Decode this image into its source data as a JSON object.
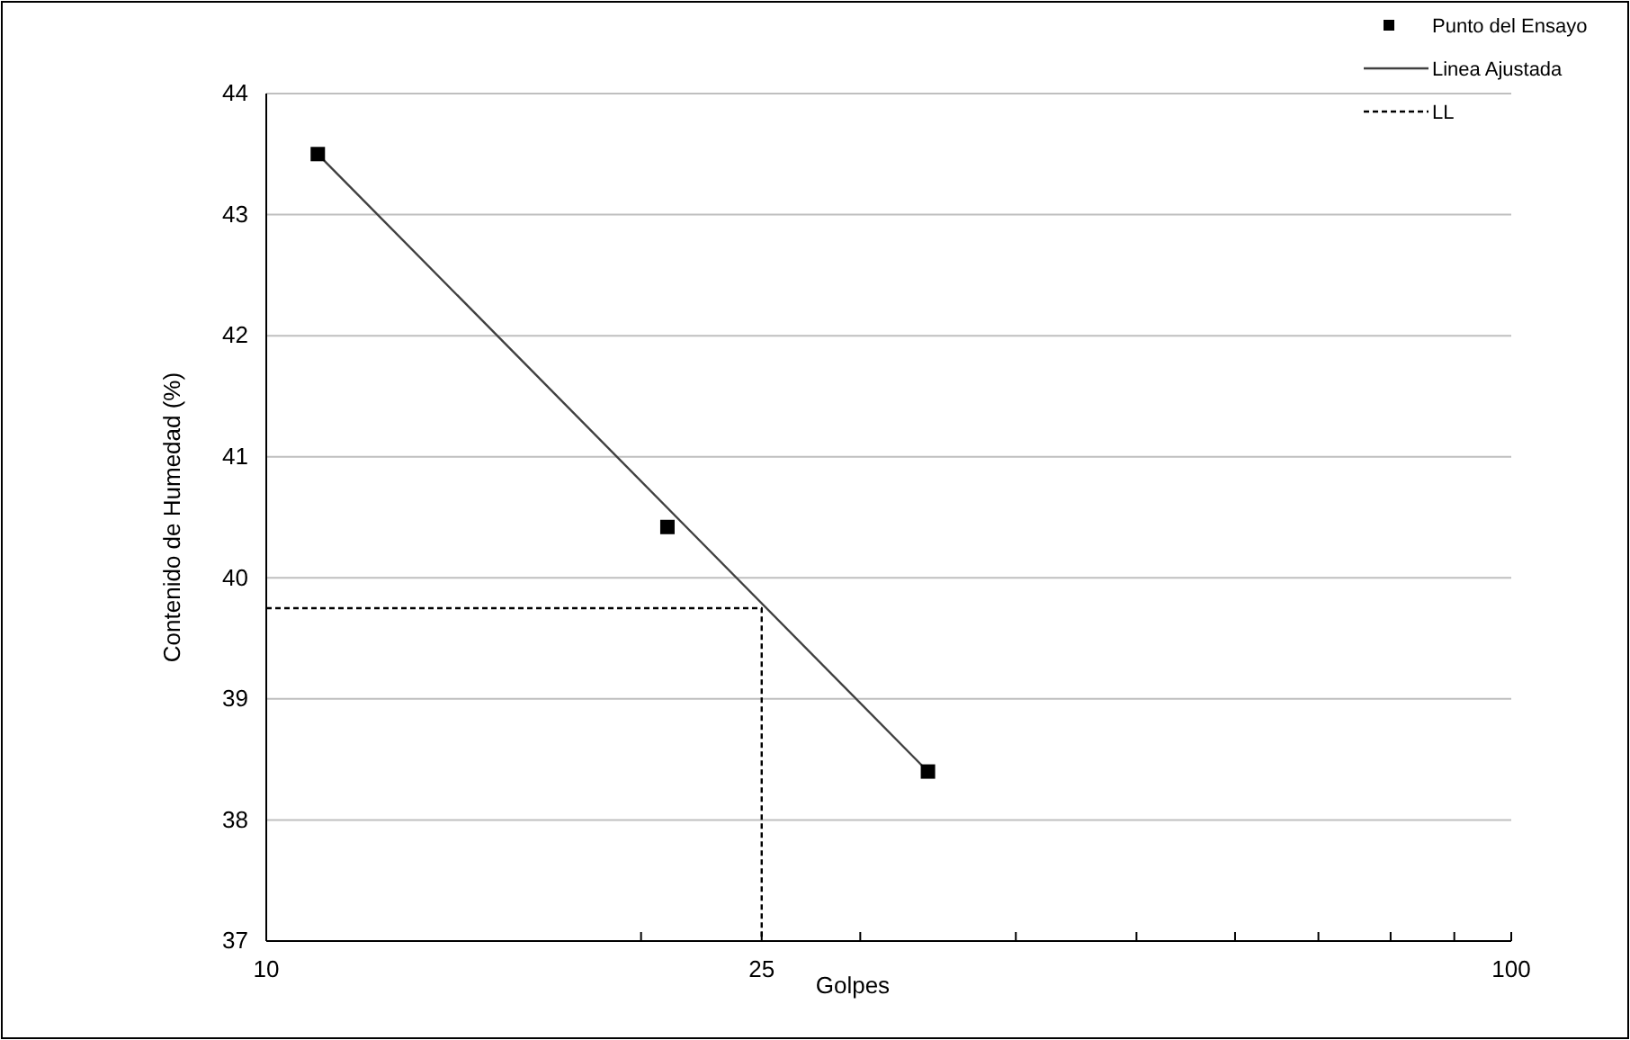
{
  "chart_data": {
    "type": "scatter",
    "xlabel": "Golpes",
    "ylabel": "Contenido de Humedad (%)",
    "log": "x",
    "xlim": [
      10,
      100
    ],
    "xticks": [
      10,
      {
        "value": 20,
        "label": null
      },
      {
        "value": 25,
        "label": "25"
      },
      {
        "value": 30,
        "label": null
      },
      {
        "value": 40,
        "label": null
      },
      {
        "value": 50,
        "label": null
      },
      {
        "value": 60,
        "label": null
      },
      {
        "value": 70,
        "label": null
      },
      {
        "value": 80,
        "label": null
      },
      {
        "value": 90,
        "label": null
      },
      100
    ],
    "ylim": [
      37,
      44
    ],
    "yticks": [
      37,
      38,
      39,
      40,
      41,
      42,
      43,
      44
    ],
    "grid": "y",
    "legend": "top right",
    "series": [
      {
        "name": "Punto del Ensayo",
        "type": "scatter",
        "marker": "square",
        "color": "#000000",
        "x": [
          11,
          21,
          34
        ],
        "values": [
          43.5,
          40.42,
          38.4
        ]
      },
      {
        "name": "Linea Ajustada",
        "type": "line",
        "marker": "none",
        "line_style": "solid",
        "color": "#404040",
        "x": [
          11,
          34
        ],
        "values": [
          43.5,
          38.4
        ]
      },
      {
        "name": "LL",
        "type": "line",
        "marker": "none",
        "line_style": "dashed",
        "color": "#000000",
        "x": [
          10,
          25,
          25
        ],
        "values": [
          39.75,
          39.75,
          37
        ]
      }
    ]
  }
}
